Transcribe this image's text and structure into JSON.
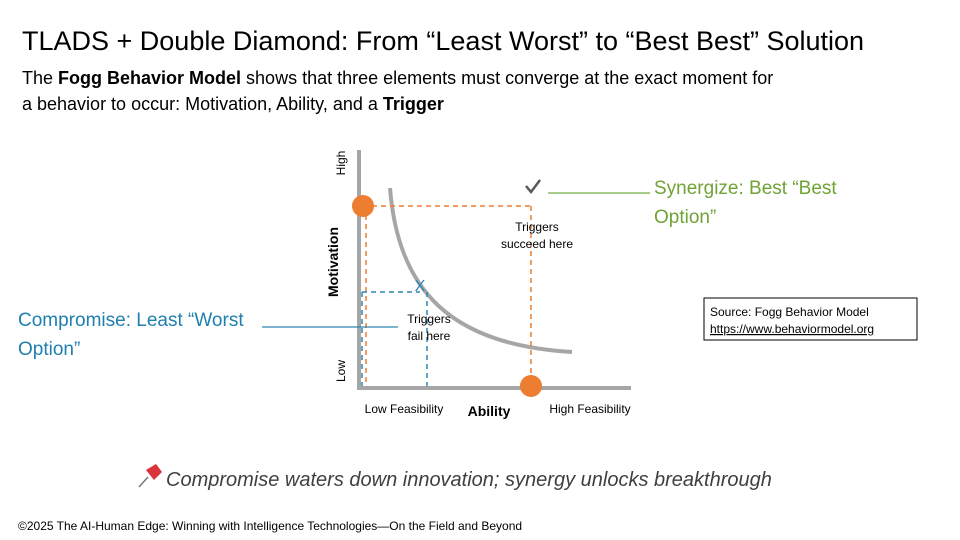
{
  "header": {
    "title": "TLADS + Double Diamond: From “Least Worst” to “Best Best” Solution",
    "subtitle": {
      "parts": [
        "The ",
        "Fogg Behavior Model",
        " shows that three elements must converge at the exact moment for",
        "a behavior to occur: Motivation, Ability, and a ",
        "Trigger"
      ]
    }
  },
  "diagram": {
    "y_axis": {
      "label": "Motivation",
      "high": "High",
      "low": "Low"
    },
    "x_axis": {
      "label": "Ability",
      "low": "Low Feasibility",
      "high": "High Feasibility"
    },
    "success_zone": {
      "lines": [
        "Triggers",
        "succeed here"
      ]
    },
    "fail_zone": {
      "lines": [
        "Triggers",
        "fail here"
      ]
    },
    "fail_marker": "X",
    "synergize": {
      "lines": [
        "Synergize: Best “Best",
        "Option”"
      ]
    },
    "compromise": {
      "lines": [
        "Compromise: Least “Worst",
        "Option”"
      ]
    }
  },
  "source": {
    "lines": [
      "Source: Fogg Behavior Model",
      "https://www.behaviormodel.org"
    ]
  },
  "tagline": "Compromise waters down innovation; synergy unlocks breakthrough",
  "footer": "©2025 The AI-Human Edge: Winning with Intelligence Technologies—On the Field and Beyond"
}
